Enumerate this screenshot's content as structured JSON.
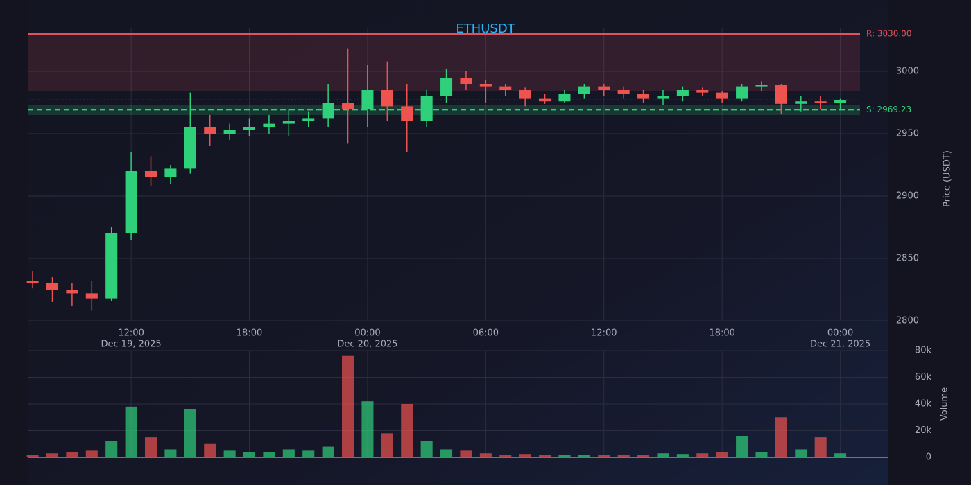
{
  "chart_data": {
    "type": "candlestick",
    "title": "ETHUSDT",
    "y_label": "Price (USDT)",
    "volume_label": "Volume",
    "up_color": "#2fd07a",
    "down_color": "#ef5350",
    "grid": true,
    "x": [
      "2025-12-19 07:00",
      "2025-12-19 08:00",
      "2025-12-19 09:00",
      "2025-12-19 10:00",
      "2025-12-19 11:00",
      "2025-12-19 12:00",
      "2025-12-19 13:00",
      "2025-12-19 14:00",
      "2025-12-19 15:00",
      "2025-12-19 16:00",
      "2025-12-19 17:00",
      "2025-12-19 18:00",
      "2025-12-19 19:00",
      "2025-12-19 20:00",
      "2025-12-19 21:00",
      "2025-12-19 22:00",
      "2025-12-19 23:00",
      "2025-12-20 00:00",
      "2025-12-20 01:00",
      "2025-12-20 02:00",
      "2025-12-20 03:00",
      "2025-12-20 04:00",
      "2025-12-20 05:00",
      "2025-12-20 06:00",
      "2025-12-20 07:00",
      "2025-12-20 08:00",
      "2025-12-20 09:00",
      "2025-12-20 10:00",
      "2025-12-20 11:00",
      "2025-12-20 12:00",
      "2025-12-20 13:00",
      "2025-12-20 14:00",
      "2025-12-20 15:00",
      "2025-12-20 16:00",
      "2025-12-20 17:00",
      "2025-12-20 18:00",
      "2025-12-20 19:00",
      "2025-12-20 20:00",
      "2025-12-20 21:00",
      "2025-12-20 22:00",
      "2025-12-20 23:00",
      "2025-12-21 00:00"
    ],
    "open": [
      2832,
      2830,
      2825,
      2822,
      2818,
      2870,
      2920,
      2915,
      2922,
      2955,
      2950,
      2953,
      2955,
      2958,
      2960,
      2962,
      2975,
      2970,
      2985,
      2972,
      2960,
      2980,
      2995,
      2990,
      2988,
      2985,
      2978,
      2976,
      2982,
      2988,
      2985,
      2982,
      2978,
      2980,
      2985,
      2983,
      2978,
      2988,
      2989,
      2974,
      2976,
      2975
    ],
    "high": [
      2840,
      2835,
      2830,
      2832,
      2875,
      2935,
      2932,
      2925,
      2983,
      2965,
      2958,
      2962,
      2965,
      2970,
      2968,
      2990,
      3018,
      3005,
      3008,
      2990,
      2985,
      3002,
      3000,
      2993,
      2990,
      2987,
      2982,
      2985,
      2990,
      2990,
      2988,
      2985,
      2985,
      2988,
      2987,
      2984,
      2990,
      2992,
      2990,
      2980,
      2980,
      2978
    ],
    "low": [
      2826,
      2815,
      2812,
      2808,
      2816,
      2865,
      2908,
      2910,
      2918,
      2940,
      2945,
      2948,
      2950,
      2948,
      2955,
      2955,
      2942,
      2955,
      2960,
      2935,
      2955,
      2975,
      2985,
      2975,
      2980,
      2972,
      2974,
      2975,
      2978,
      2980,
      2978,
      2975,
      2973,
      2976,
      2980,
      2975,
      2976,
      2984,
      2966,
      2968,
      2970,
      2970
    ],
    "close": [
      2830,
      2825,
      2822,
      2818,
      2870,
      2920,
      2915,
      2922,
      2955,
      2950,
      2953,
      2955,
      2958,
      2960,
      2962,
      2975,
      2970,
      2985,
      2972,
      2960,
      2980,
      2995,
      2990,
      2988,
      2985,
      2978,
      2976,
      2982,
      2988,
      2985,
      2982,
      2978,
      2980,
      2985,
      2983,
      2978,
      2988,
      2989,
      2974,
      2976,
      2975,
      2977
    ],
    "volume": [
      2000,
      3000,
      4000,
      5000,
      12000,
      38000,
      15000,
      6000,
      36000,
      10000,
      5000,
      4000,
      4000,
      6000,
      5000,
      8000,
      76000,
      42000,
      18000,
      40000,
      12000,
      6000,
      5000,
      3000,
      2000,
      2500,
      2000,
      2000,
      2000,
      2000,
      2000,
      2000,
      3000,
      2500,
      3000,
      4000,
      16000,
      4000,
      30000,
      6000,
      15000,
      3000
    ],
    "xlim": [
      "2025-12-19 06:45",
      "2025-12-21 01:00"
    ],
    "xticks": [
      {
        "value": "2025-12-19 12:00",
        "label": "12:00",
        "date": "Dec 19, 2025"
      },
      {
        "value": "2025-12-19 18:00",
        "label": "18:00"
      },
      {
        "value": "2025-12-20 00:00",
        "label": "00:00",
        "date": "Dec 20, 2025"
      },
      {
        "value": "2025-12-20 06:00",
        "label": "06:00"
      },
      {
        "value": "2025-12-20 12:00",
        "label": "12:00"
      },
      {
        "value": "2025-12-20 18:00",
        "label": "18:00"
      },
      {
        "value": "2025-12-21 00:00",
        "label": "00:00",
        "date": "Dec 21, 2025"
      }
    ],
    "ylim": [
      2800,
      3035
    ],
    "yticks": [
      2800,
      2850,
      2900,
      2950,
      3000
    ],
    "volume_ylim": [
      0,
      80000
    ],
    "volume_yticks": [
      0,
      {
        "value": 20000,
        "label": "20k"
      },
      {
        "value": 40000,
        "label": "40k"
      },
      {
        "value": 60000,
        "label": "60k"
      },
      {
        "value": 80000,
        "label": "80k"
      }
    ],
    "resistance": {
      "value": 3030,
      "label": "R: 3030.00",
      "zone": [
        2984,
        3030
      ],
      "color": "#e05260"
    },
    "support": {
      "value": 2969.23,
      "label": "S: 2969.23",
      "zone": [
        2965,
        2973
      ],
      "color": "#2fd07a"
    }
  }
}
